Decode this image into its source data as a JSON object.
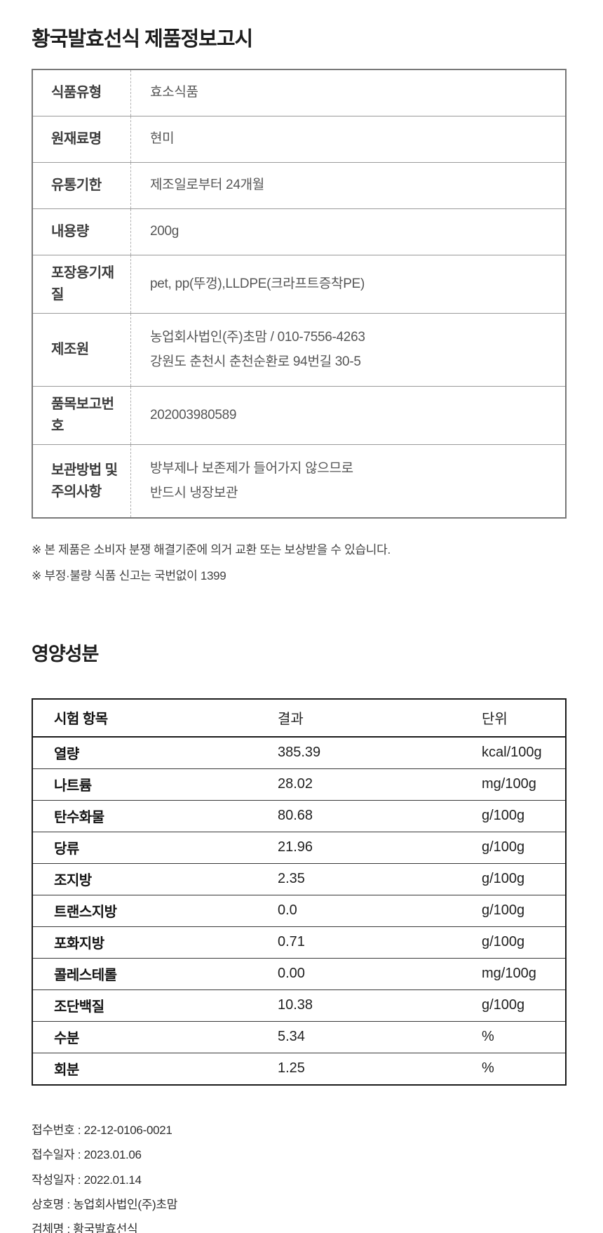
{
  "title": "황국발효선식 제품정보고시",
  "product_info": {
    "rows": [
      {
        "label": "식품유형",
        "value": "효소식품"
      },
      {
        "label": "원재료명",
        "value": "현미"
      },
      {
        "label": "유통기한",
        "value": "제조일로부터 24개월"
      },
      {
        "label": "내용량",
        "value": "200g"
      },
      {
        "label": "포장용기재질",
        "value": "pet, pp(뚜껑),LLDPE(크라프트증착PE)"
      },
      {
        "label": "제조원",
        "value": "농업회사법인(주)초맘 / 010-7556-4263",
        "value2": "강원도 춘천시 춘천순환로 94번길 30-5"
      },
      {
        "label": "품목보고번호",
        "value": "202003980589"
      },
      {
        "label": "보관방법 및 주의사항",
        "value": "방부제나 보존제가 들어가지 않으므로",
        "value2": "반드시 냉장보관"
      }
    ]
  },
  "notices": [
    "※ 본 제품은 소비자 분쟁 해결기준에 의거 교환 또는 보상받을 수 있습니다.",
    "※ 부정·불량 식품 신고는 국번없이 1399"
  ],
  "nutrition": {
    "title": "영양성분",
    "headers": {
      "item": "시험 항목",
      "result": "결과",
      "unit": "단위"
    },
    "rows": [
      {
        "item": "열량",
        "result": "385.39",
        "unit": "kcal/100g"
      },
      {
        "item": "나트륨",
        "result": "28.02",
        "unit": "mg/100g"
      },
      {
        "item": "탄수화물",
        "result": "80.68",
        "unit": "g/100g"
      },
      {
        "item": "당류",
        "result": "21.96",
        "unit": "g/100g"
      },
      {
        "item": "조지방",
        "result": "2.35",
        "unit": "g/100g"
      },
      {
        "item": "트랜스지방",
        "result": "0.0",
        "unit": "g/100g"
      },
      {
        "item": "포화지방",
        "result": "0.71",
        "unit": "g/100g"
      },
      {
        "item": "콜레스테롤",
        "result": "0.00",
        "unit": "mg/100g"
      },
      {
        "item": "조단백질",
        "result": "10.38",
        "unit": "g/100g"
      },
      {
        "item": "수분",
        "result": "5.34",
        "unit": "%"
      },
      {
        "item": "회분",
        "result": "1.25",
        "unit": "%"
      }
    ]
  },
  "footer": {
    "lines": [
      "접수번호 : 22-12-0106-0021",
      "접수일자 : 2023.01.06",
      "작성일자 : 2022.01.14",
      "상호명 : 농업회사법인(주)초맘",
      "검체명 : 황국발효선식"
    ]
  }
}
